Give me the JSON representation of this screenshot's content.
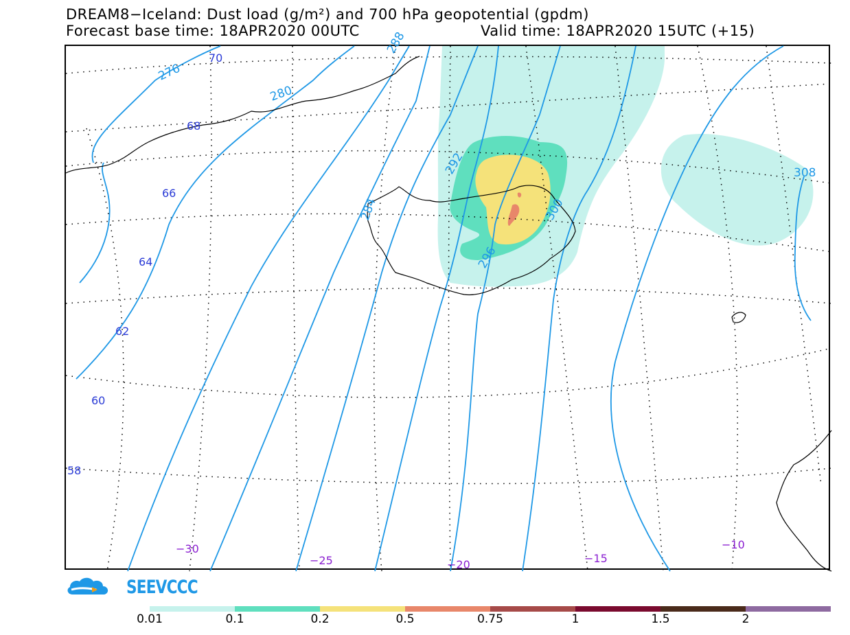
{
  "header": {
    "title": "DREAM8−Iceland: Dust load (g/m²) and 700 hPa geopotential (gpdm)",
    "forecast_base": "Forecast base time: 18APR2020 00UTC",
    "valid_time": "Valid time: 18APR2020 15UTC (+15)"
  },
  "map": {
    "lat_labels": [
      "70",
      "68",
      "66",
      "64",
      "62",
      "60",
      "58"
    ],
    "lon_labels": [
      "−30",
      "−25",
      "−20",
      "−15",
      "−10"
    ],
    "geopotential_labels": [
      "276",
      "280",
      "288",
      "292",
      "296",
      "300",
      "308",
      "284"
    ],
    "colors": {
      "geopotential": "#1e98e6",
      "lat_label": "#2a3bd6",
      "lon_label": "#8a1ed0",
      "coast": "#000000"
    }
  },
  "logo": {
    "text": "SEEVCCC",
    "icon": "cloud-icon"
  },
  "legend": {
    "ticks": [
      "0.01",
      "0.1",
      "0.2",
      "0.5",
      "0.75",
      "1",
      "1.5",
      "2"
    ],
    "colors": [
      "#c6f2ec",
      "#5fdfbe",
      "#f5e27a",
      "#e8876a",
      "#a64a48",
      "#7a0a2e",
      "#4a2a1a",
      "#8e6aa0"
    ]
  }
}
